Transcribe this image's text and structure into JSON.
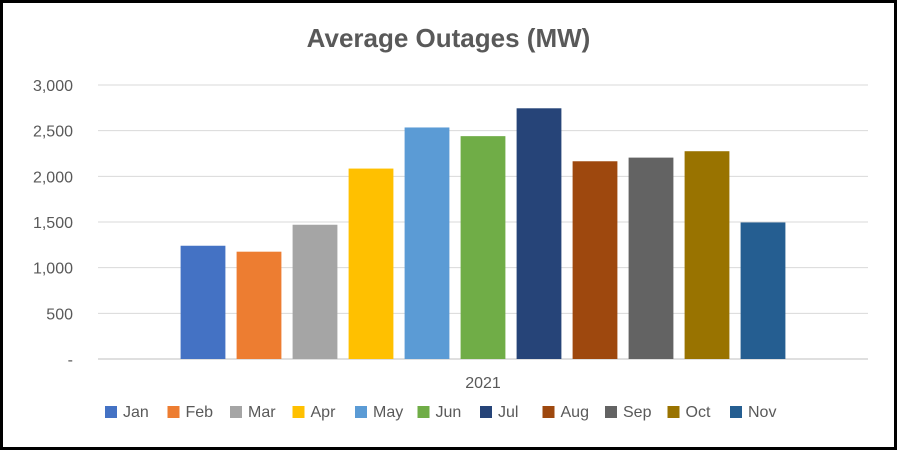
{
  "chart_data": {
    "type": "bar",
    "title": "Average Outages (MW)",
    "xlabel": "",
    "ylabel": "",
    "group_label": "2021",
    "ylim": [
      0,
      3000
    ],
    "yticks": [
      0,
      500,
      1000,
      1500,
      2000,
      2500,
      3000
    ],
    "ytick_labels": [
      "-",
      "500",
      "1,000",
      "1,500",
      "2,000",
      "2,500",
      "3,000"
    ],
    "grid": true,
    "legend_position": "bottom",
    "series": [
      {
        "name": "Jan",
        "value": 1240,
        "color": "#4472C4"
      },
      {
        "name": "Feb",
        "value": 1175,
        "color": "#ED7D31"
      },
      {
        "name": "Mar",
        "value": 1470,
        "color": "#A5A5A5"
      },
      {
        "name": "Apr",
        "value": 2085,
        "color": "#FFC000"
      },
      {
        "name": "May",
        "value": 2535,
        "color": "#5B9BD5"
      },
      {
        "name": "Jun",
        "value": 2440,
        "color": "#70AD47"
      },
      {
        "name": "Jul",
        "value": 2745,
        "color": "#264478"
      },
      {
        "name": "Aug",
        "value": 2165,
        "color": "#9E480E"
      },
      {
        "name": "Sep",
        "value": 2205,
        "color": "#636363"
      },
      {
        "name": "Oct",
        "value": 2275,
        "color": "#997300"
      },
      {
        "name": "Nov",
        "value": 1495,
        "color": "#255E91"
      }
    ]
  }
}
